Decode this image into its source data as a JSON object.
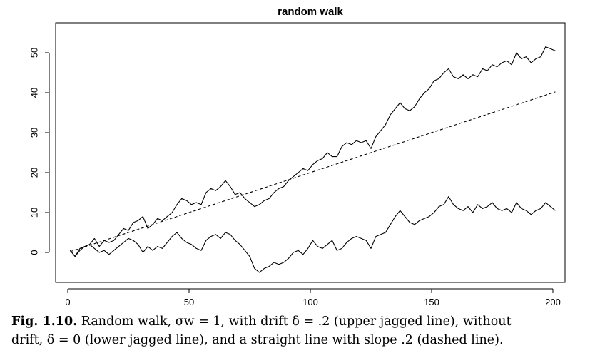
{
  "chart_data": {
    "type": "line",
    "title": "random walk",
    "xlabel": "",
    "ylabel": "",
    "xlim": [
      -5,
      205
    ],
    "ylim": [
      -7.5,
      57.5
    ],
    "x_ticks": [
      0,
      50,
      100,
      150,
      200
    ],
    "y_ticks": [
      0,
      10,
      20,
      30,
      40,
      50
    ],
    "x_tick_labels": [
      "0",
      "50",
      "100",
      "150",
      "200"
    ],
    "y_tick_labels": [
      "0",
      "10",
      "20",
      "30",
      "40",
      "50"
    ],
    "grid": false,
    "legend": "none",
    "series": [
      {
        "line_style": "solid",
        "color": "#000000",
        "points": [
          [
            1,
            0.5
          ],
          [
            3,
            -1.0
          ],
          [
            5,
            1.0
          ],
          [
            7,
            1.5
          ],
          [
            9,
            2.0
          ],
          [
            11,
            3.5
          ],
          [
            13,
            1.5
          ],
          [
            15,
            3.0
          ],
          [
            17,
            2.5
          ],
          [
            19,
            3.0
          ],
          [
            21,
            4.5
          ],
          [
            23,
            6.0
          ],
          [
            25,
            5.5
          ],
          [
            27,
            7.5
          ],
          [
            29,
            8.0
          ],
          [
            31,
            9.0
          ],
          [
            33,
            6.0
          ],
          [
            35,
            7.0
          ],
          [
            37,
            8.5
          ],
          [
            39,
            8.0
          ],
          [
            41,
            9.0
          ],
          [
            43,
            10.0
          ],
          [
            45,
            12.0
          ],
          [
            47,
            13.5
          ],
          [
            49,
            13.0
          ],
          [
            51,
            12.0
          ],
          [
            53,
            12.5
          ],
          [
            55,
            12.0
          ],
          [
            57,
            15.0
          ],
          [
            59,
            16.0
          ],
          [
            61,
            15.5
          ],
          [
            63,
            16.5
          ],
          [
            65,
            18.0
          ],
          [
            67,
            16.5
          ],
          [
            69,
            14.5
          ],
          [
            71,
            15.0
          ],
          [
            73,
            13.5
          ],
          [
            75,
            12.5
          ],
          [
            77,
            11.5
          ],
          [
            79,
            12.0
          ],
          [
            81,
            13.0
          ],
          [
            83,
            13.5
          ],
          [
            85,
            15.0
          ],
          [
            87,
            16.0
          ],
          [
            89,
            16.5
          ],
          [
            91,
            18.0
          ],
          [
            93,
            19.0
          ],
          [
            95,
            20.0
          ],
          [
            97,
            21.0
          ],
          [
            99,
            20.5
          ],
          [
            101,
            22.0
          ],
          [
            103,
            23.0
          ],
          [
            105,
            23.5
          ],
          [
            107,
            25.0
          ],
          [
            109,
            24.0
          ],
          [
            111,
            24.0
          ],
          [
            113,
            26.5
          ],
          [
            115,
            27.5
          ],
          [
            117,
            27.0
          ],
          [
            119,
            28.0
          ],
          [
            121,
            27.5
          ],
          [
            123,
            28.0
          ],
          [
            125,
            26.0
          ],
          [
            127,
            29.0
          ],
          [
            129,
            30.5
          ],
          [
            131,
            32.0
          ],
          [
            133,
            34.5
          ],
          [
            135,
            36.0
          ],
          [
            137,
            37.5
          ],
          [
            139,
            36.0
          ],
          [
            141,
            35.5
          ],
          [
            143,
            36.5
          ],
          [
            145,
            38.5
          ],
          [
            147,
            40.0
          ],
          [
            149,
            41.0
          ],
          [
            151,
            43.0
          ],
          [
            153,
            43.5
          ],
          [
            155,
            45.0
          ],
          [
            157,
            46.0
          ],
          [
            159,
            44.0
          ],
          [
            161,
            43.5
          ],
          [
            163,
            44.5
          ],
          [
            165,
            43.5
          ],
          [
            167,
            44.5
          ],
          [
            169,
            44.0
          ],
          [
            171,
            46.0
          ],
          [
            173,
            45.5
          ],
          [
            175,
            47.0
          ],
          [
            177,
            46.5
          ],
          [
            179,
            47.5
          ],
          [
            181,
            48.0
          ],
          [
            183,
            47.0
          ],
          [
            185,
            50.0
          ],
          [
            187,
            48.5
          ],
          [
            189,
            49.0
          ],
          [
            191,
            47.5
          ],
          [
            193,
            48.5
          ],
          [
            195,
            49.0
          ],
          [
            197,
            51.5
          ],
          [
            199,
            51.0
          ],
          [
            201,
            50.5
          ]
        ]
      },
      {
        "line_style": "solid",
        "color": "#000000",
        "points": [
          [
            1,
            0.5
          ],
          [
            3,
            -1.0
          ],
          [
            5,
            0.5
          ],
          [
            7,
            1.5
          ],
          [
            9,
            2.0
          ],
          [
            11,
            1.0
          ],
          [
            13,
            0.0
          ],
          [
            15,
            0.5
          ],
          [
            17,
            -0.5
          ],
          [
            19,
            0.5
          ],
          [
            21,
            1.5
          ],
          [
            23,
            2.5
          ],
          [
            25,
            3.5
          ],
          [
            27,
            3.0
          ],
          [
            29,
            2.0
          ],
          [
            31,
            0.0
          ],
          [
            33,
            1.5
          ],
          [
            35,
            0.5
          ],
          [
            37,
            1.5
          ],
          [
            39,
            1.0
          ],
          [
            41,
            2.5
          ],
          [
            43,
            4.0
          ],
          [
            45,
            5.0
          ],
          [
            47,
            3.5
          ],
          [
            49,
            2.5
          ],
          [
            51,
            2.0
          ],
          [
            53,
            1.0
          ],
          [
            55,
            0.5
          ],
          [
            57,
            3.0
          ],
          [
            59,
            4.0
          ],
          [
            61,
            4.5
          ],
          [
            63,
            3.5
          ],
          [
            65,
            5.0
          ],
          [
            67,
            4.5
          ],
          [
            69,
            3.0
          ],
          [
            71,
            2.0
          ],
          [
            73,
            0.5
          ],
          [
            75,
            -1.0
          ],
          [
            77,
            -4.0
          ],
          [
            79,
            -5.0
          ],
          [
            81,
            -4.0
          ],
          [
            83,
            -3.5
          ],
          [
            85,
            -2.5
          ],
          [
            87,
            -3.0
          ],
          [
            89,
            -2.5
          ],
          [
            91,
            -1.5
          ],
          [
            93,
            0.0
          ],
          [
            95,
            0.5
          ],
          [
            97,
            -0.5
          ],
          [
            99,
            1.0
          ],
          [
            101,
            3.0
          ],
          [
            103,
            1.5
          ],
          [
            105,
            1.0
          ],
          [
            107,
            2.0
          ],
          [
            109,
            3.0
          ],
          [
            111,
            0.5
          ],
          [
            113,
            1.0
          ],
          [
            115,
            2.5
          ],
          [
            117,
            3.5
          ],
          [
            119,
            4.0
          ],
          [
            121,
            3.5
          ],
          [
            123,
            3.0
          ],
          [
            125,
            1.0
          ],
          [
            127,
            4.0
          ],
          [
            129,
            4.5
          ],
          [
            131,
            5.0
          ],
          [
            133,
            7.0
          ],
          [
            135,
            9.0
          ],
          [
            137,
            10.5
          ],
          [
            139,
            9.0
          ],
          [
            141,
            7.5
          ],
          [
            143,
            7.0
          ],
          [
            145,
            8.0
          ],
          [
            147,
            8.5
          ],
          [
            149,
            9.0
          ],
          [
            151,
            10.0
          ],
          [
            153,
            11.5
          ],
          [
            155,
            12.0
          ],
          [
            157,
            14.0
          ],
          [
            159,
            12.0
          ],
          [
            161,
            11.0
          ],
          [
            163,
            10.5
          ],
          [
            165,
            11.5
          ],
          [
            167,
            10.0
          ],
          [
            169,
            12.0
          ],
          [
            171,
            11.0
          ],
          [
            173,
            11.5
          ],
          [
            175,
            12.5
          ],
          [
            177,
            11.0
          ],
          [
            179,
            10.5
          ],
          [
            181,
            11.0
          ],
          [
            183,
            10.0
          ],
          [
            185,
            12.5
          ],
          [
            187,
            11.0
          ],
          [
            189,
            10.5
          ],
          [
            191,
            9.5
          ],
          [
            193,
            10.5
          ],
          [
            195,
            11.0
          ],
          [
            197,
            12.5
          ],
          [
            199,
            11.5
          ],
          [
            201,
            10.5
          ]
        ]
      },
      {
        "line_style": "dashed",
        "color": "#000000",
        "points": [
          [
            1,
            0.2
          ],
          [
            201,
            40.2
          ]
        ]
      }
    ]
  },
  "caption": {
    "label": "Fig. 1.10.",
    "line1": " Random walk, σw = 1, with drift δ = .2 (upper jagged line), without",
    "line2": "drift, δ = 0 (lower jagged line), and a straight line with slope .2 (dashed line)."
  }
}
